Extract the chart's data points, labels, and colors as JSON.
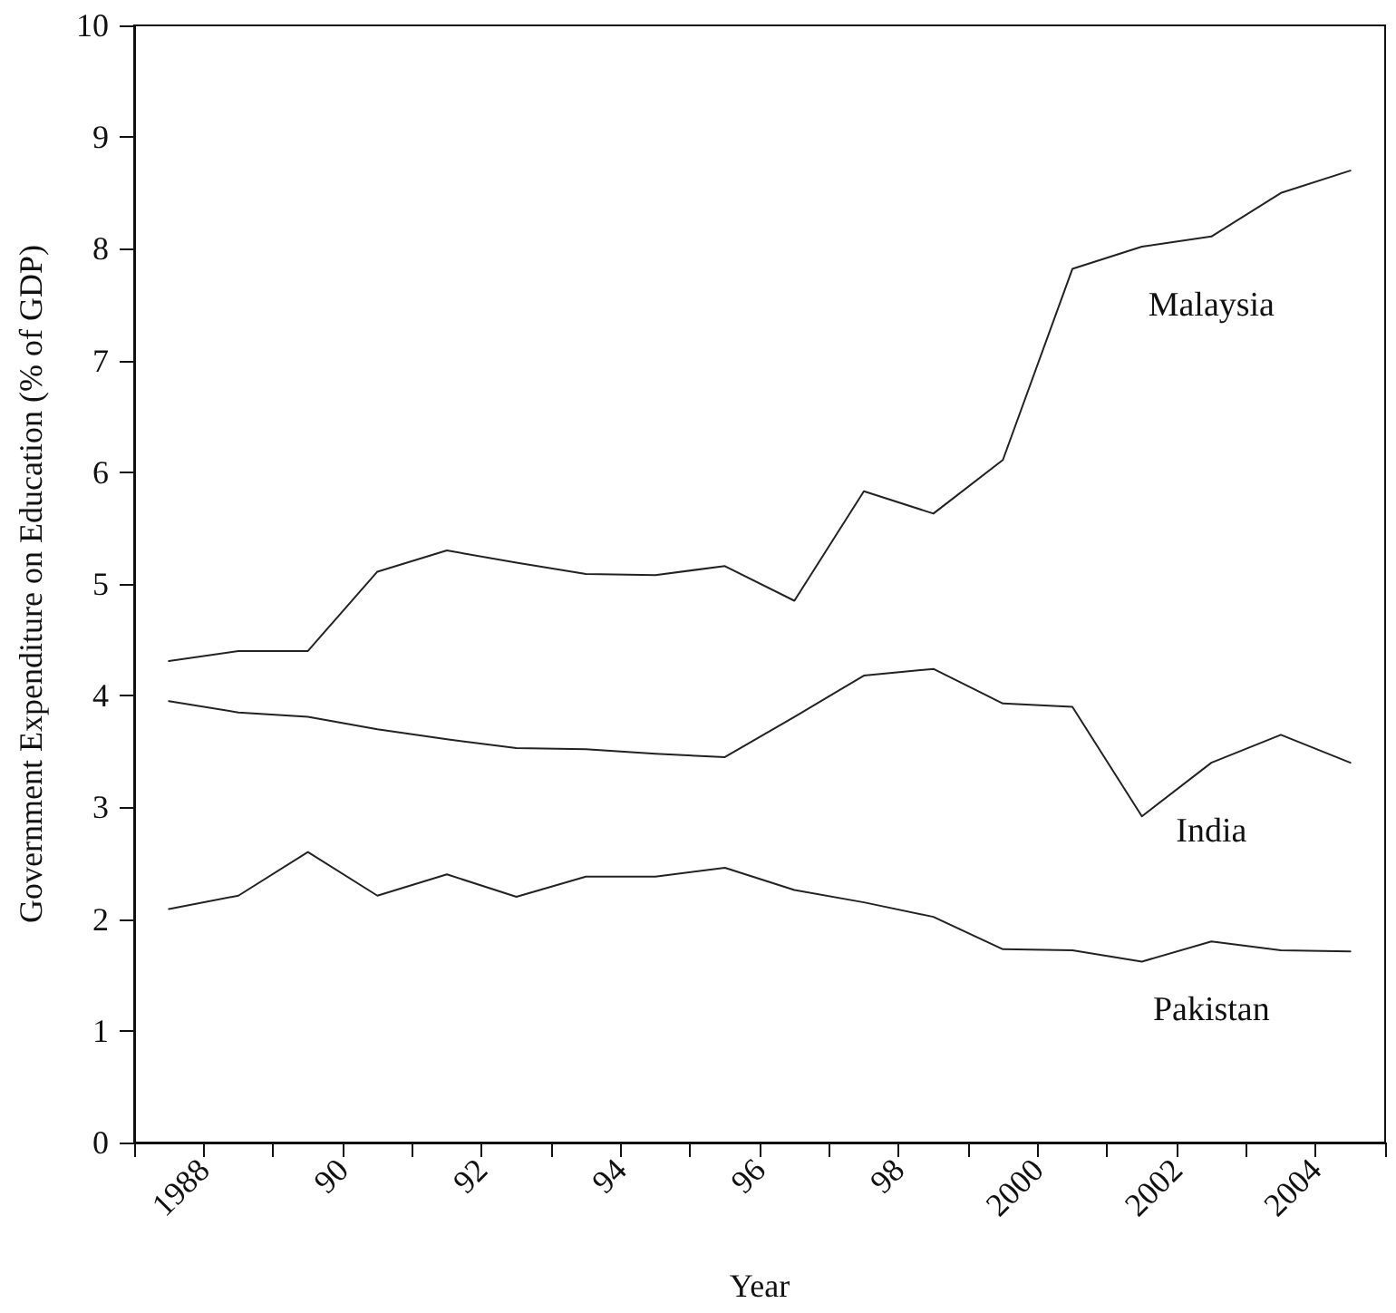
{
  "chart_data": {
    "type": "line",
    "xlabel": "Year",
    "ylabel": "Government Expenditure on Education (% of GDP)",
    "x": [
      1987.5,
      1988.5,
      1989.5,
      1990.5,
      1991.5,
      1992.5,
      1993.5,
      1994.5,
      1995.5,
      1996.5,
      1997.5,
      1998.5,
      1999.5,
      2000.5,
      2001.5,
      2002.5,
      2003.5,
      2004.5
    ],
    "series": [
      {
        "name": "Malaysia",
        "color": "#222222",
        "values": [
          4.31,
          4.4,
          4.4,
          5.11,
          5.3,
          5.19,
          5.09,
          5.08,
          5.16,
          4.85,
          5.83,
          5.63,
          6.11,
          7.82,
          8.02,
          8.11,
          8.5,
          8.7
        ]
      },
      {
        "name": "India",
        "color": "#222222",
        "values": [
          3.95,
          3.85,
          3.81,
          3.7,
          3.61,
          3.53,
          3.52,
          3.48,
          3.45,
          3.81,
          4.18,
          4.24,
          3.93,
          3.9,
          2.92,
          3.4,
          3.65,
          3.4
        ]
      },
      {
        "name": "Pakistan",
        "color": "#222222",
        "values": [
          2.09,
          2.21,
          2.6,
          2.21,
          2.4,
          2.2,
          2.38,
          2.38,
          2.46,
          2.26,
          2.15,
          2.02,
          1.73,
          1.72,
          1.62,
          1.8,
          1.72,
          1.71
        ]
      }
    ],
    "xlim": [
      1987,
      2005
    ],
    "xticks": [
      {
        "value": 1987,
        "label": null
      },
      1988,
      {
        "value": 1989,
        "label": null
      },
      {
        "value": 1990,
        "label": "90"
      },
      {
        "value": 1991,
        "label": null
      },
      {
        "value": 1992,
        "label": "92"
      },
      {
        "value": 1993,
        "label": null
      },
      {
        "value": 1994,
        "label": "94"
      },
      {
        "value": 1995,
        "label": null
      },
      {
        "value": 1996,
        "label": "96"
      },
      {
        "value": 1997,
        "label": null
      },
      {
        "value": 1998,
        "label": "98"
      },
      {
        "value": 1999,
        "label": null
      },
      2000,
      {
        "value": 2001,
        "label": null
      },
      2002,
      {
        "value": 2003,
        "label": null
      },
      2004,
      {
        "value": 2005,
        "label": null
      }
    ],
    "ylim": [
      0,
      10
    ],
    "yticks": [
      0,
      1,
      2,
      3,
      4,
      5,
      6,
      7,
      8,
      9,
      10
    ],
    "grid": false,
    "marker": "none",
    "line_style": "solid"
  }
}
